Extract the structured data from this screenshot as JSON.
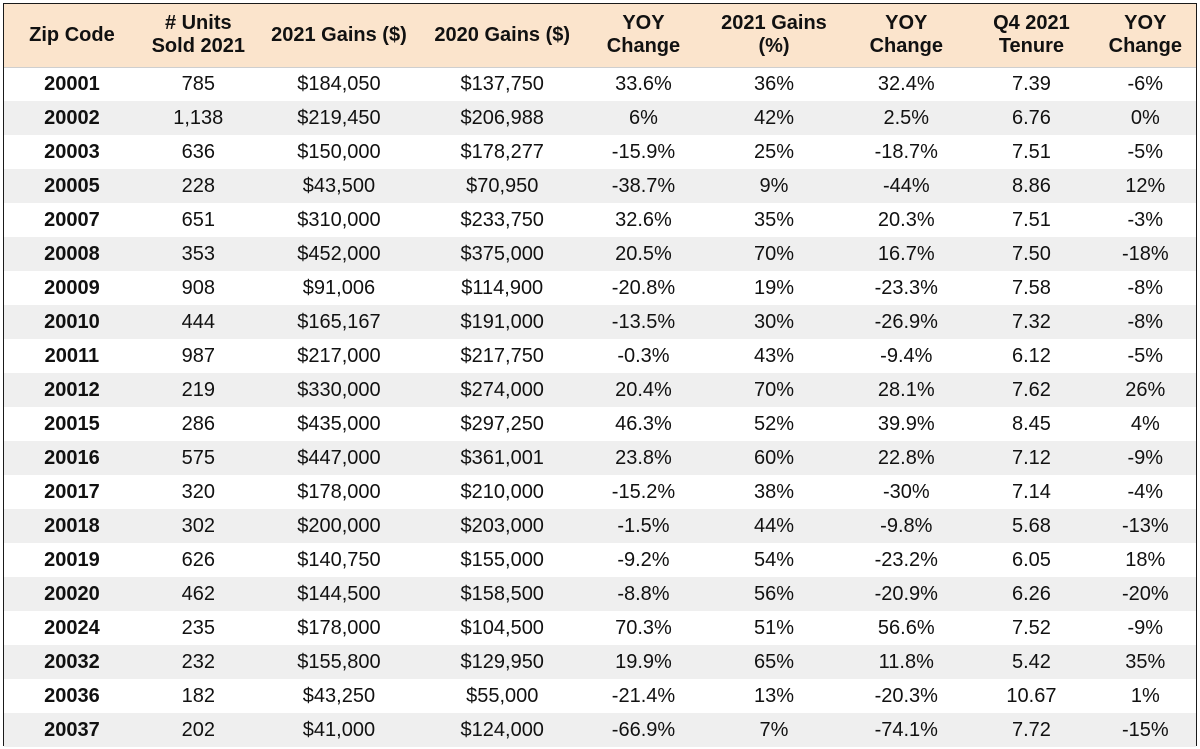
{
  "table": {
    "columns": [
      "Zip Code",
      "# Units\nSold 2021",
      "2021 Gains ($)",
      "2020 Gains ($)",
      "YOY\nChange",
      "2021 Gains\n(%)",
      "YOY\nChange",
      "Q4 2021\nTenure",
      "YOY\nChange"
    ],
    "rows": [
      [
        "20001",
        "785",
        "$184,050",
        "$137,750",
        "33.6%",
        "36%",
        "32.4%",
        "7.39",
        "-6%"
      ],
      [
        "20002",
        "1,138",
        "$219,450",
        "$206,988",
        "6%",
        "42%",
        "2.5%",
        "6.76",
        "0%"
      ],
      [
        "20003",
        "636",
        "$150,000",
        "$178,277",
        "-15.9%",
        "25%",
        "-18.7%",
        "7.51",
        "-5%"
      ],
      [
        "20005",
        "228",
        "$43,500",
        "$70,950",
        "-38.7%",
        "9%",
        "-44%",
        "8.86",
        "12%"
      ],
      [
        "20007",
        "651",
        "$310,000",
        "$233,750",
        "32.6%",
        "35%",
        "20.3%",
        "7.51",
        "-3%"
      ],
      [
        "20008",
        "353",
        "$452,000",
        "$375,000",
        "20.5%",
        "70%",
        "16.7%",
        "7.50",
        "-18%"
      ],
      [
        "20009",
        "908",
        "$91,006",
        "$114,900",
        "-20.8%",
        "19%",
        "-23.3%",
        "7.58",
        "-8%"
      ],
      [
        "20010",
        "444",
        "$165,167",
        "$191,000",
        "-13.5%",
        "30%",
        "-26.9%",
        "7.32",
        "-8%"
      ],
      [
        "20011",
        "987",
        "$217,000",
        "$217,750",
        "-0.3%",
        "43%",
        "-9.4%",
        "6.12",
        "-5%"
      ],
      [
        "20012",
        "219",
        "$330,000",
        "$274,000",
        "20.4%",
        "70%",
        "28.1%",
        "7.62",
        "26%"
      ],
      [
        "20015",
        "286",
        "$435,000",
        "$297,250",
        "46.3%",
        "52%",
        "39.9%",
        "8.45",
        "4%"
      ],
      [
        "20016",
        "575",
        "$447,000",
        "$361,001",
        "23.8%",
        "60%",
        "22.8%",
        "7.12",
        "-9%"
      ],
      [
        "20017",
        "320",
        "$178,000",
        "$210,000",
        "-15.2%",
        "38%",
        "-30%",
        "7.14",
        "-4%"
      ],
      [
        "20018",
        "302",
        "$200,000",
        "$203,000",
        "-1.5%",
        "44%",
        "-9.8%",
        "5.68",
        "-13%"
      ],
      [
        "20019",
        "626",
        "$140,750",
        "$155,000",
        "-9.2%",
        "54%",
        "-23.2%",
        "6.05",
        "18%"
      ],
      [
        "20020",
        "462",
        "$144,500",
        "$158,500",
        "-8.8%",
        "56%",
        "-20.9%",
        "6.26",
        "-20%"
      ],
      [
        "20024",
        "235",
        "$178,000",
        "$104,500",
        "70.3%",
        "51%",
        "56.6%",
        "7.52",
        "-9%"
      ],
      [
        "20032",
        "232",
        "$155,800",
        "$129,950",
        "19.9%",
        "65%",
        "11.8%",
        "5.42",
        "35%"
      ],
      [
        "20036",
        "182",
        "$43,250",
        "$55,000",
        "-21.4%",
        "13%",
        "-20.3%",
        "10.67",
        "1%"
      ],
      [
        "20037",
        "202",
        "$41,000",
        "$124,000",
        "-66.9%",
        "7%",
        "-74.1%",
        "7.72",
        "-15%"
      ]
    ]
  },
  "colors": {
    "header_bg": "#fbe4cc",
    "stripe_bg": "#efefef",
    "row_bg": "#ffffff",
    "border": "#1a1a1a"
  }
}
